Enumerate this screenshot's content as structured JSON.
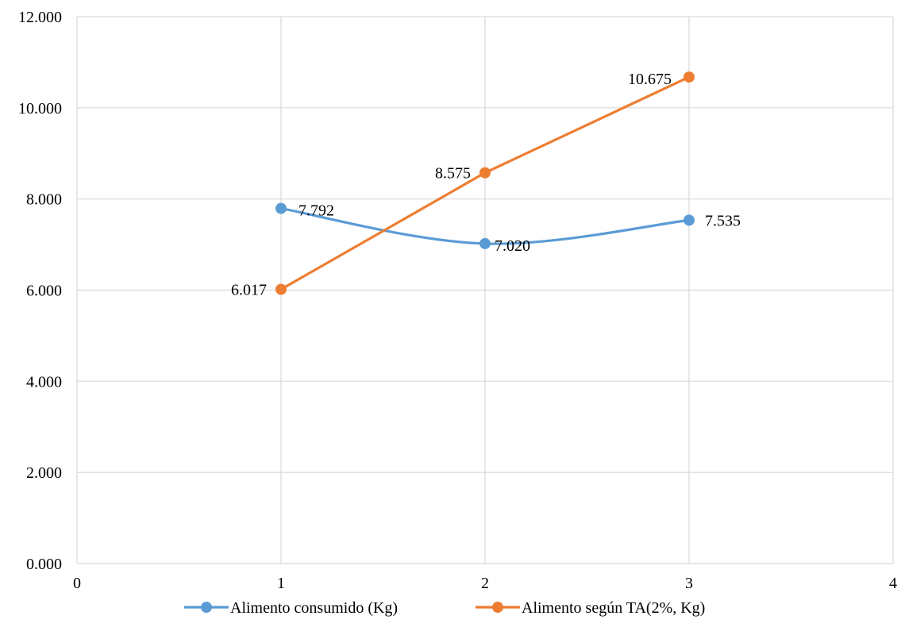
{
  "chart_data": {
    "type": "scatter",
    "xlim": [
      0,
      4
    ],
    "ylim": [
      0,
      12
    ],
    "x_ticks": [
      0,
      1,
      2,
      3,
      4
    ],
    "x_tick_labels": [
      "0",
      "1",
      "2",
      "3",
      "4"
    ],
    "y_ticks": [
      0,
      2,
      4,
      6,
      8,
      10,
      12
    ],
    "y_tick_labels": [
      "0.000",
      "2.000",
      "4.000",
      "6.000",
      "8.000",
      "10.000",
      "12.000"
    ],
    "grid": true,
    "legend_position": "bottom",
    "series": [
      {
        "name": "Alimento consumido (Kg)",
        "color": "#5B9BD5",
        "smooth": true,
        "x": [
          1,
          2,
          3
        ],
        "y": [
          7.792,
          7.02,
          7.535
        ],
        "labels": [
          "7.792",
          "7.020",
          "7.535"
        ]
      },
      {
        "name": "Alimento según TA(2%, Kg)",
        "color": "#ED7D31",
        "smooth": false,
        "x": [
          1,
          2,
          3
        ],
        "y": [
          6.017,
          8.575,
          10.675
        ],
        "labels": [
          "6.017",
          "8.575",
          "10.675"
        ]
      }
    ]
  }
}
